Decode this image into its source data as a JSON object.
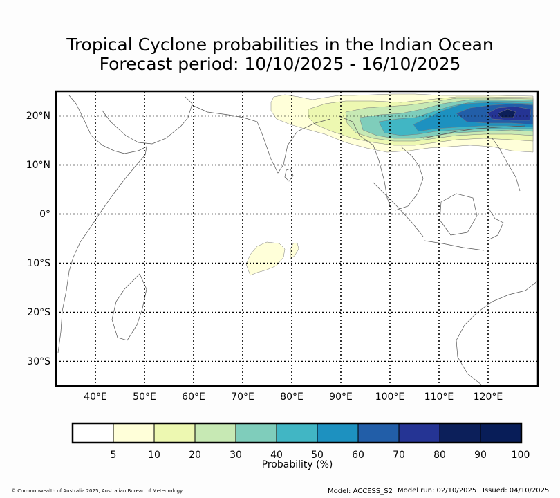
{
  "title": {
    "line1": "Tropical Cyclone probabilities in the Indian Ocean",
    "line2": "Forecast period: 10/10/2025 - 16/10/2025"
  },
  "map": {
    "lon_range": [
      32,
      130
    ],
    "lat_range": [
      -35,
      25
    ],
    "lon_ticks": [
      40,
      50,
      60,
      70,
      80,
      90,
      100,
      110,
      120
    ],
    "lat_ticks": [
      20,
      10,
      0,
      -10,
      -20,
      -30
    ],
    "lon_labels": [
      "40°E",
      "50°E",
      "60°E",
      "70°E",
      "80°E",
      "90°E",
      "100°E",
      "110°E",
      "120°E"
    ],
    "lat_labels": [
      "20°N",
      "10°N",
      "0°",
      "10°S",
      "20°S",
      "30°S"
    ],
    "gridlines": true,
    "projection": "equirectangular"
  },
  "colorbar": {
    "title": "Probability (%)",
    "labels": [
      "5",
      "10",
      "20",
      "30",
      "40",
      "50",
      "60",
      "70",
      "80",
      "90",
      "100"
    ],
    "colors": [
      "#ffffff",
      "#ffffd9",
      "#edf8b1",
      "#c7e9b4",
      "#7fcdbb",
      "#41b6c4",
      "#1d91c0",
      "#225ea8",
      "#253494",
      "#0c1f5a",
      "#081d58"
    ]
  },
  "footer": {
    "copyright": "© Commonwealth of Australia 2025, Australian Bureau of Meteorology",
    "model": "Model: ACCESS_S2",
    "model_run": "Model run: 02/10/2025",
    "issued": "Issued: 04/10/2025"
  }
}
